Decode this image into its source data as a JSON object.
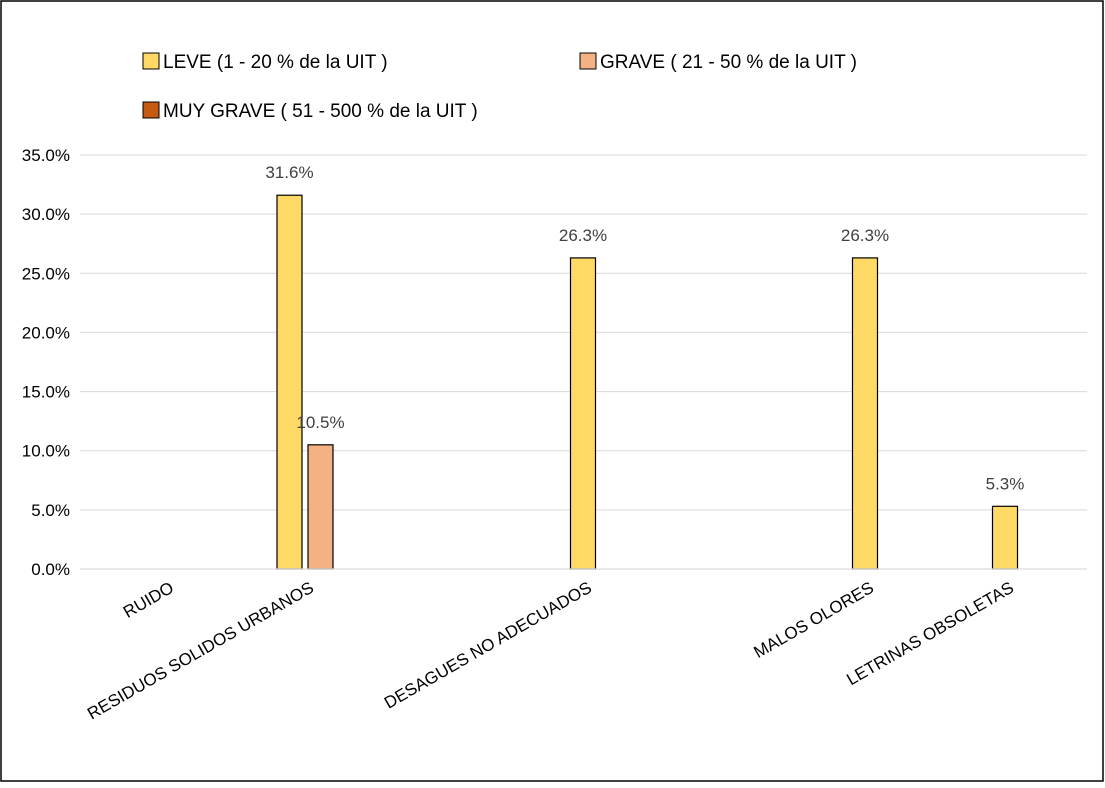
{
  "chart_data": {
    "type": "bar",
    "categories": [
      "RUIDO",
      "RESIDUOS SOLIDOS URBANOS",
      "DESAGUES NO ADECUADOS",
      "MALOS OLORES",
      "LETRINAS OBSOLETAS"
    ],
    "series": [
      {
        "name": "LEVE (1 - 20 % de la UIT )",
        "values": [
          null,
          31.6,
          26.3,
          26.3,
          5.3
        ],
        "color": "#FFD966"
      },
      {
        "name": "GRAVE ( 21 - 50 % de la UIT )",
        "values": [
          null,
          10.5,
          null,
          null,
          null
        ],
        "color": "#F4B183"
      },
      {
        "name": "MUY GRAVE ( 51 - 500 % de la UIT )",
        "values": [
          null,
          null,
          null,
          null,
          null
        ],
        "color": "#C55A11"
      }
    ],
    "value_format": "percent_1dp",
    "yticks": [
      "0.0%",
      "5.0%",
      "10.0%",
      "15.0%",
      "20.0%",
      "25.0%",
      "30.0%",
      "35.0%"
    ],
    "ylim": [
      0,
      35
    ],
    "title": "",
    "xlabel": "",
    "ylabel": "",
    "grid": true,
    "legend_position": "top"
  }
}
